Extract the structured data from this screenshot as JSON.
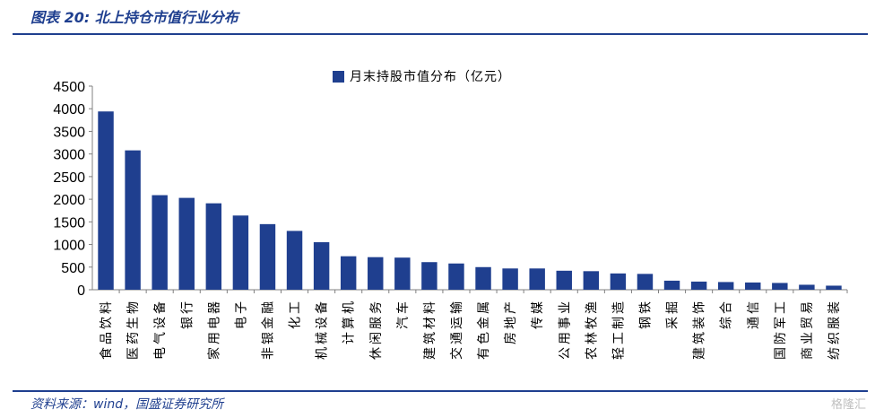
{
  "header": {
    "title": "图表 20:  北上持仓市值行业分布"
  },
  "footer": {
    "source": "资料来源：wind，国盛证券研究所",
    "watermark": "格隆汇"
  },
  "colors": {
    "accent": "#1f3f8f",
    "bar": "#1f3f8f"
  },
  "chart_data": {
    "type": "bar",
    "title": "",
    "xlabel": "",
    "ylabel": "",
    "ylim": [
      0,
      4500
    ],
    "yticks": [
      0,
      500,
      1000,
      1500,
      2000,
      2500,
      3000,
      3500,
      4000,
      4500
    ],
    "grid": false,
    "legend_position": "top-center",
    "categories": [
      "食品饮料",
      "医药生物",
      "电气设备",
      "银行",
      "家用电器",
      "电子",
      "非银金融",
      "化工",
      "机械设备",
      "计算机",
      "休闲服务",
      "汽车",
      "建筑材料",
      "交通运输",
      "有色金属",
      "房地产",
      "传媒",
      "公用事业",
      "农林牧渔",
      "轻工制造",
      "钢铁",
      "采掘",
      "建筑装饰",
      "综合",
      "通信",
      "国防军工",
      "商业贸易",
      "纺织服装"
    ],
    "series": [
      {
        "name": "月末持股市值分布（亿元）",
        "values": [
          3940,
          3080,
          2090,
          2030,
          1910,
          1640,
          1450,
          1300,
          1050,
          740,
          720,
          710,
          610,
          580,
          500,
          470,
          470,
          420,
          410,
          360,
          350,
          200,
          180,
          170,
          160,
          150,
          110,
          90
        ]
      }
    ]
  }
}
